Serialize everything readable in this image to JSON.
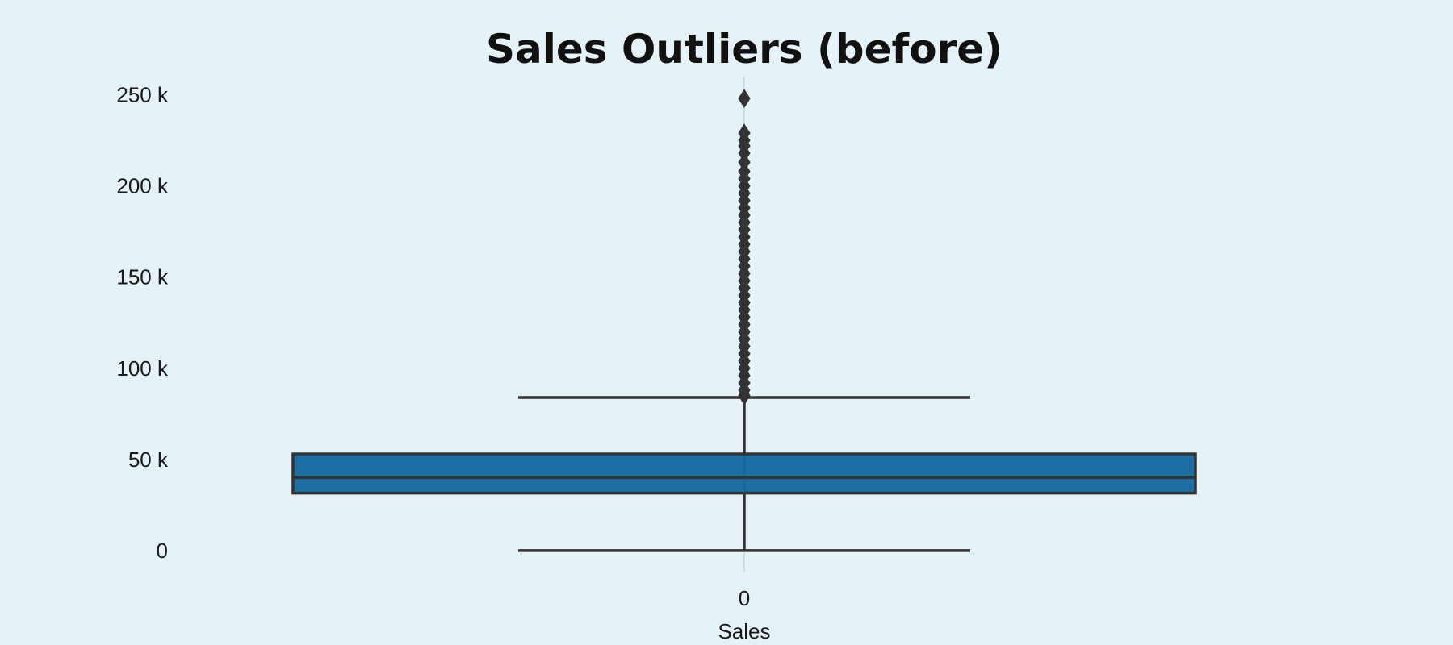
{
  "chart_data": {
    "type": "box",
    "title": "Sales Outliers (before)",
    "xlabel": "Sales",
    "ylabel": "",
    "x_tick_labels": [
      "0"
    ],
    "y_ticks": [
      0,
      50000,
      100000,
      150000,
      200000,
      250000
    ],
    "y_tick_labels": [
      "0",
      "50 k",
      "100 k",
      "150 k",
      "200 k",
      "250 k"
    ],
    "ylim": [
      -12000,
      260000
    ],
    "grid": false,
    "series": [
      {
        "name": "Sales",
        "category": "0",
        "whisker_low": 0,
        "q1": 31500,
        "median": 40000,
        "q3": 53000,
        "whisker_high": 84000,
        "outliers": [
          85000,
          88000,
          92000,
          96000,
          100000,
          104000,
          108000,
          112000,
          116000,
          120000,
          124000,
          128000,
          132000,
          136000,
          140000,
          144000,
          148000,
          152000,
          156000,
          160000,
          164000,
          168000,
          172000,
          176000,
          180000,
          184000,
          188000,
          192000,
          196000,
          200000,
          204000,
          208000,
          213000,
          218000,
          222000,
          225000,
          229000,
          248000
        ]
      }
    ],
    "colors": {
      "box_fill": "#1669a0",
      "line": "#333333",
      "background": "#e5f2f8"
    }
  }
}
